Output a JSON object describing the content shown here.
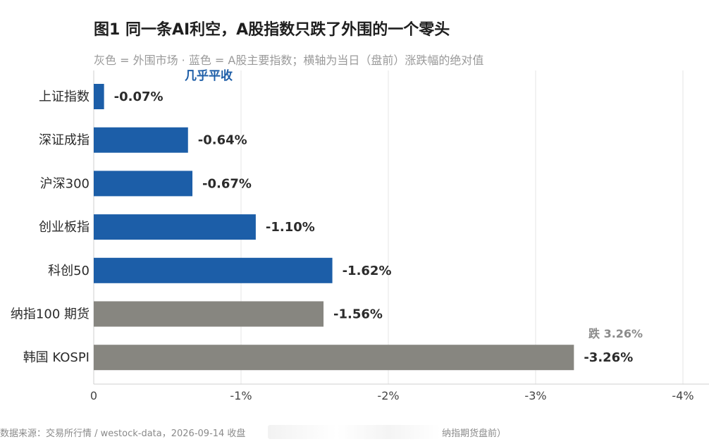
{
  "title": "图1  同一条AI利空，A股指数只跌了外围的一个零头",
  "subtitle": "灰色 = 外围市场 · 蓝色 = A股主要指数；横轴为当日（盘前）涨跌幅的绝对值",
  "footer_left": "数据来源：交易所行情 / westock-data，2026-09-14 收盘",
  "footer_right": "纳指期货盘前）",
  "colors": {
    "a_share": "#1c5ea8",
    "overseas": "#878680"
  },
  "chart_data": {
    "type": "bar",
    "orientation": "horizontal",
    "title": "图1  同一条AI利空，A股指数只跌了外围的一个零头",
    "subtitle": "灰色 = 外围市场 · 蓝色 = A股主要指数；横轴为当日（盘前）涨跌幅的绝对值",
    "categories": [
      "上证指数",
      "深证成指",
      "沪深300",
      "创业板指",
      "科创50",
      "纳指100 期货",
      "韩国 KOSPI"
    ],
    "values": [
      -0.07,
      -0.64,
      -0.67,
      -1.1,
      -1.62,
      -1.56,
      -3.26
    ],
    "value_labels": [
      "-0.07%",
      "-0.64%",
      "-0.67%",
      "-1.10%",
      "-1.62%",
      "-1.56%",
      "-3.26%"
    ],
    "groups": [
      "A股",
      "A股",
      "A股",
      "A股",
      "A股",
      "外围",
      "外围"
    ],
    "xlim": [
      0,
      -4
    ],
    "xticks": [
      0,
      -1,
      -2,
      -3,
      -4
    ],
    "xtick_labels": [
      "0",
      "-1%",
      "-2%",
      "-3%",
      "-4%"
    ],
    "grid": true,
    "annotations": [
      {
        "text": "几乎平收",
        "category": "上证指数"
      },
      {
        "text": "跌 3.26%",
        "category": "韩国 KOSPI"
      }
    ]
  }
}
